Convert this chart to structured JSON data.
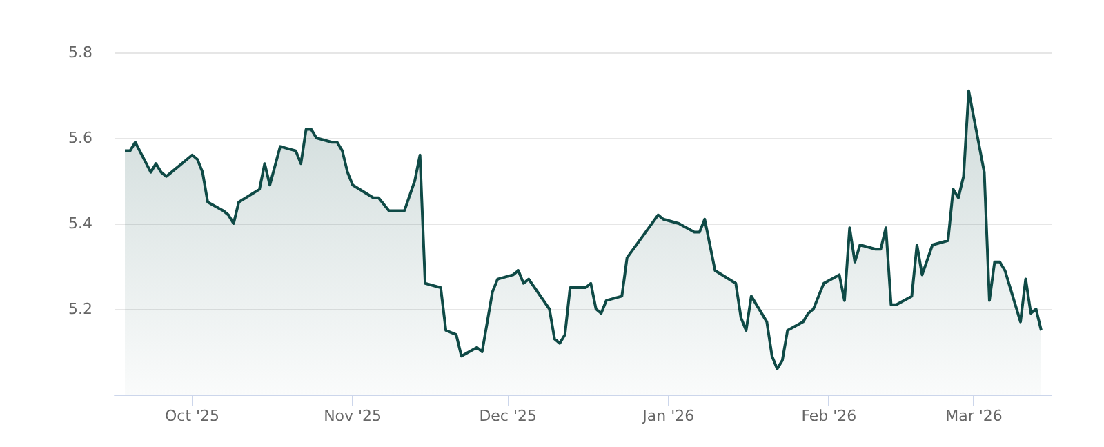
{
  "chart_data": {
    "type": "area",
    "x": [
      "2025-09-18",
      "2025-09-19",
      "2025-09-20",
      "2025-09-23",
      "2025-09-24",
      "2025-09-25",
      "2025-09-26",
      "2025-09-27",
      "2025-09-29",
      "2025-10-01",
      "2025-10-02",
      "2025-10-03",
      "2025-10-04",
      "2025-10-07",
      "2025-10-08",
      "2025-10-09",
      "2025-10-10",
      "2025-10-14",
      "2025-10-15",
      "2025-10-16",
      "2025-10-18",
      "2025-10-21",
      "2025-10-22",
      "2025-10-23",
      "2025-10-24",
      "2025-10-25",
      "2025-10-28",
      "2025-10-29",
      "2025-10-30",
      "2025-10-31",
      "2025-11-01",
      "2025-11-05",
      "2025-11-06",
      "2025-11-08",
      "2025-11-11",
      "2025-11-13",
      "2025-11-14",
      "2025-11-15",
      "2025-11-18",
      "2025-11-19",
      "2025-11-21",
      "2025-11-22",
      "2025-11-25",
      "2025-11-26",
      "2025-11-27",
      "2025-11-28",
      "2025-11-29",
      "2025-12-02",
      "2025-12-03",
      "2025-12-04",
      "2025-12-05",
      "2025-12-09",
      "2025-12-10",
      "2025-12-11",
      "2025-12-12",
      "2025-12-13",
      "2025-12-16",
      "2025-12-17",
      "2025-12-18",
      "2025-12-19",
      "2025-12-20",
      "2025-12-23",
      "2025-12-24",
      "2025-12-30",
      "2025-12-31",
      "2026-01-03",
      "2026-01-06",
      "2026-01-07",
      "2026-01-08",
      "2026-01-09",
      "2026-01-10",
      "2026-01-14",
      "2026-01-15",
      "2026-01-16",
      "2026-01-17",
      "2026-01-20",
      "2026-01-21",
      "2026-01-22",
      "2026-01-23",
      "2026-01-24",
      "2026-01-27",
      "2026-01-28",
      "2026-01-29",
      "2026-01-31",
      "2026-02-03",
      "2026-02-04",
      "2026-02-05",
      "2026-02-06",
      "2026-02-07",
      "2026-02-10",
      "2026-02-11",
      "2026-02-12",
      "2026-02-13",
      "2026-02-14",
      "2026-02-17",
      "2026-02-18",
      "2026-02-19",
      "2026-02-21",
      "2026-02-24",
      "2026-02-25",
      "2026-02-26",
      "2026-02-27",
      "2026-02-28",
      "2026-03-03",
      "2026-03-04",
      "2026-03-05",
      "2026-03-06",
      "2026-03-07",
      "2026-03-10",
      "2026-03-11",
      "2026-03-12",
      "2026-03-13",
      "2026-03-14"
    ],
    "series": [
      {
        "color": "#0f4a46",
        "values": [
          5.57,
          5.57,
          5.59,
          5.52,
          5.54,
          5.52,
          5.51,
          5.52,
          5.54,
          5.56,
          5.55,
          5.52,
          5.45,
          5.43,
          5.42,
          5.4,
          5.45,
          5.48,
          5.54,
          5.49,
          5.58,
          5.57,
          5.54,
          5.62,
          5.62,
          5.6,
          5.59,
          5.59,
          5.57,
          5.52,
          5.49,
          5.46,
          5.46,
          5.43,
          5.43,
          5.5,
          5.56,
          5.26,
          5.25,
          5.15,
          5.14,
          5.09,
          5.11,
          5.1,
          5.17,
          5.24,
          5.27,
          5.28,
          5.29,
          5.26,
          5.27,
          5.2,
          5.13,
          5.12,
          5.14,
          5.25,
          5.25,
          5.26,
          5.2,
          5.19,
          5.22,
          5.23,
          5.32,
          5.42,
          5.41,
          5.4,
          5.38,
          5.38,
          5.41,
          5.35,
          5.29,
          5.26,
          5.18,
          5.15,
          5.23,
          5.17,
          5.09,
          5.06,
          5.08,
          5.15,
          5.17,
          5.19,
          5.2,
          5.26,
          5.28,
          5.22,
          5.39,
          5.31,
          5.35,
          5.34,
          5.34,
          5.39,
          5.21,
          5.21,
          5.23,
          5.35,
          5.28,
          5.35,
          5.36,
          5.48,
          5.46,
          5.51,
          5.71,
          5.52,
          5.22,
          5.31,
          5.31,
          5.29,
          5.17,
          5.27,
          5.19,
          5.2,
          5.15
        ]
      }
    ],
    "xlim": [
      "2025-09-16",
      "2026-03-16"
    ],
    "xticks": [
      {
        "value": "2025-10-01",
        "label": "Oct '25"
      },
      {
        "value": "2025-11-01",
        "label": "Nov '25"
      },
      {
        "value": "2025-12-01",
        "label": "Dec '25"
      },
      {
        "value": "2026-01-01",
        "label": "Jan '26"
      },
      {
        "value": "2026-02-01",
        "label": "Feb '26"
      },
      {
        "value": "2026-03-01",
        "label": "Mar '26"
      }
    ],
    "ylim": [
      5.0,
      5.8
    ],
    "yticks": [
      5.2,
      5.4,
      5.6,
      5.8
    ],
    "grid": "y"
  }
}
